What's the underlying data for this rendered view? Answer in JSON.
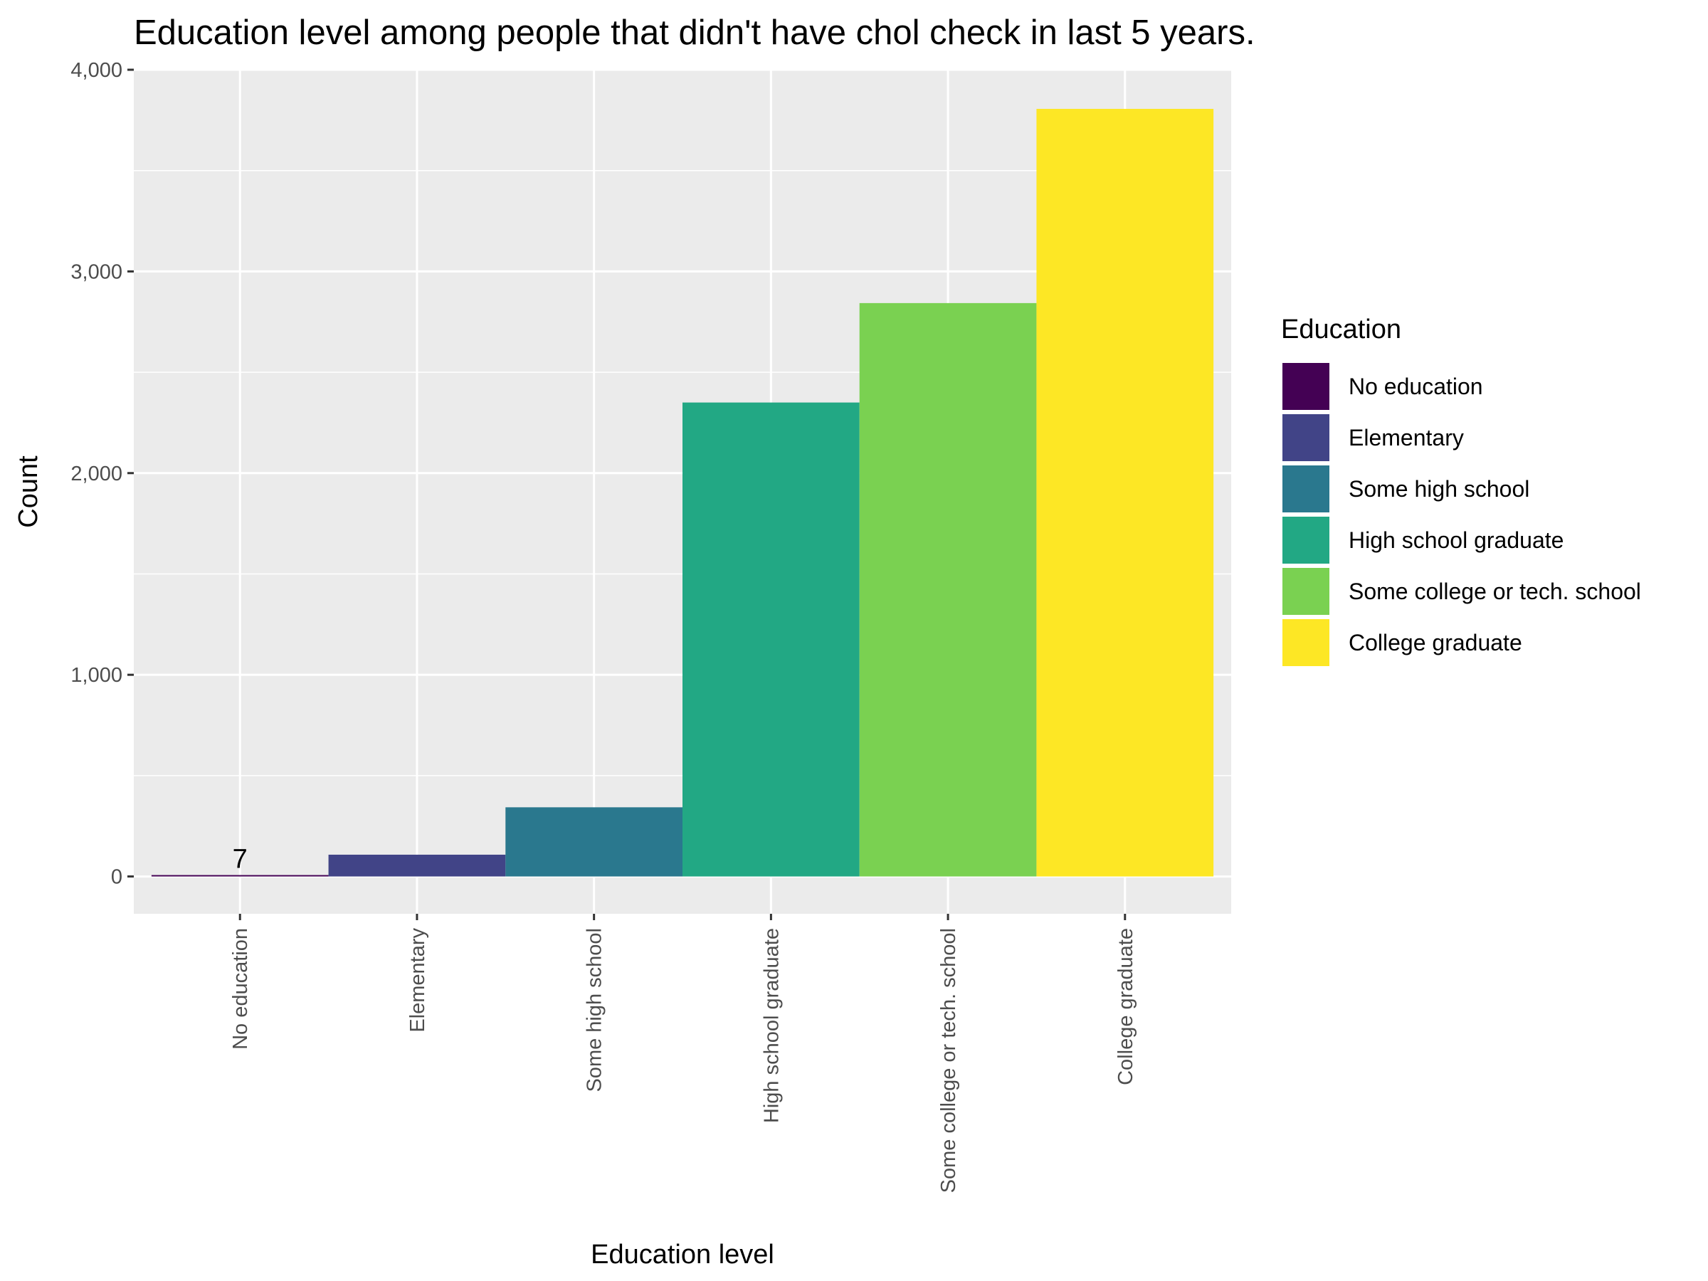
{
  "chart_data": {
    "type": "bar",
    "title": "Education level among people that didn't have chol check in last 5 years.",
    "xlabel": "Education level",
    "ylabel": "Count",
    "categories": [
      "No education",
      "Elementary",
      "Some high school",
      "High school graduate",
      "Some college or tech. school",
      "College graduate"
    ],
    "values": [
      7,
      108,
      343,
      2350,
      2843,
      3806
    ],
    "colors": [
      "#440154",
      "#414487",
      "#2A788E",
      "#22A884",
      "#7AD151",
      "#FDE725"
    ],
    "ylim": [
      -185,
      4000
    ],
    "yticks": [
      0,
      1000,
      2000,
      3000,
      4000
    ],
    "ytick_labels": [
      "0",
      "1,000",
      "2,000",
      "3,000",
      "4,000"
    ],
    "data_labels": [
      {
        "category": "No education",
        "text": "7"
      }
    ],
    "grid": true,
    "panel_background": "#EBEBEB",
    "legend": {
      "title": "Education",
      "position": "right",
      "entries": [
        "No education",
        "Elementary",
        "Some high school",
        "High school graduate",
        "Some college or tech. school",
        "College graduate"
      ]
    }
  }
}
